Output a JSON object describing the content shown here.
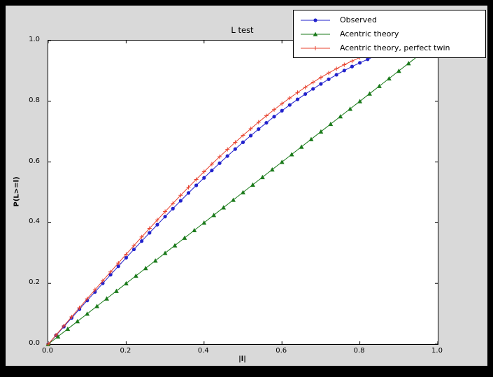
{
  "colors": {
    "figure_background": "#d9d9d9",
    "axes_background": "#ffffff",
    "frame": "#000000"
  },
  "chart_data": {
    "type": "line",
    "title": "L test",
    "xlabel": "|l|",
    "ylabel": "P(L>=l)",
    "xlim": [
      0,
      1
    ],
    "ylim": [
      0,
      1
    ],
    "grid": false,
    "legend_position": "upper right",
    "xtick_labels": [
      "0.0",
      "0.2",
      "0.4",
      "0.6",
      "0.8",
      "1.0"
    ],
    "ytick_labels": [
      "0.0",
      "0.2",
      "0.4",
      "0.6",
      "0.8",
      "1.0"
    ],
    "xticks": [
      0,
      0.2,
      0.4,
      0.6,
      0.8,
      1.0
    ],
    "yticks": [
      0,
      0.2,
      0.4,
      0.6,
      0.8,
      1.0
    ],
    "series": [
      {
        "name": "Observed",
        "color": "#2222cc",
        "marker": "circle",
        "x": [
          0,
          0.02,
          0.04,
          0.06,
          0.08,
          0.1,
          0.12,
          0.14,
          0.16,
          0.18,
          0.2,
          0.22,
          0.24,
          0.26,
          0.28,
          0.3,
          0.32,
          0.34,
          0.36,
          0.38,
          0.4,
          0.42,
          0.44,
          0.46,
          0.48,
          0.5,
          0.52,
          0.54,
          0.56,
          0.58,
          0.6,
          0.62,
          0.64,
          0.66,
          0.68,
          0.7,
          0.72,
          0.74,
          0.76,
          0.78,
          0.8,
          0.82,
          0.84,
          0.86
        ],
        "y": [
          0,
          0.0288,
          0.0576,
          0.0863,
          0.115,
          0.1436,
          0.172,
          0.2004,
          0.2286,
          0.2566,
          0.2845,
          0.3121,
          0.3395,
          0.3667,
          0.3935,
          0.4201,
          0.4464,
          0.4723,
          0.4979,
          0.5231,
          0.5478,
          0.5722,
          0.5961,
          0.6196,
          0.6425,
          0.665,
          0.6869,
          0.7083,
          0.7291,
          0.7494,
          0.769,
          0.7879,
          0.8063,
          0.8239,
          0.8409,
          0.8571,
          0.8726,
          0.8873,
          0.9013,
          0.9144,
          0.9267,
          0.9382,
          0.9488,
          0.9585
        ]
      },
      {
        "name": "Acentric theory",
        "color": "#1a7a1a",
        "marker": "triangle",
        "x": [
          0,
          0.025,
          0.05,
          0.075,
          0.1,
          0.125,
          0.15,
          0.175,
          0.2,
          0.225,
          0.25,
          0.275,
          0.3,
          0.325,
          0.35,
          0.375,
          0.4,
          0.425,
          0.45,
          0.475,
          0.5,
          0.525,
          0.55,
          0.575,
          0.6,
          0.625,
          0.65,
          0.675,
          0.7,
          0.725,
          0.75,
          0.775,
          0.8,
          0.825,
          0.85,
          0.875,
          0.9,
          0.925,
          0.95,
          0.975
        ],
        "y": [
          0,
          0.025,
          0.05,
          0.075,
          0.1,
          0.125,
          0.15,
          0.175,
          0.2,
          0.225,
          0.25,
          0.275,
          0.3,
          0.325,
          0.35,
          0.375,
          0.4,
          0.425,
          0.45,
          0.475,
          0.5,
          0.525,
          0.55,
          0.575,
          0.6,
          0.625,
          0.65,
          0.675,
          0.7,
          0.725,
          0.75,
          0.775,
          0.8,
          0.825,
          0.85,
          0.875,
          0.9,
          0.925,
          0.95,
          0.975
        ]
      },
      {
        "name": "Acentric theory, perfect twin",
        "color": "#e8402c",
        "marker": "plus",
        "x": [
          0,
          0.02,
          0.04,
          0.06,
          0.08,
          0.1,
          0.12,
          0.14,
          0.16,
          0.18,
          0.2,
          0.22,
          0.24,
          0.26,
          0.28,
          0.3,
          0.32,
          0.34,
          0.36,
          0.38,
          0.4,
          0.42,
          0.44,
          0.46,
          0.48,
          0.5,
          0.52,
          0.54,
          0.56,
          0.58,
          0.6,
          0.62,
          0.64,
          0.66,
          0.68,
          0.7,
          0.72,
          0.74,
          0.76,
          0.78,
          0.8,
          0.82,
          0.84,
          0.86
        ],
        "y": [
          0,
          0.03,
          0.06,
          0.0899,
          0.1197,
          0.1495,
          0.1791,
          0.2086,
          0.238,
          0.2671,
          0.296,
          0.3247,
          0.3531,
          0.3812,
          0.409,
          0.4365,
          0.4636,
          0.4903,
          0.5167,
          0.5426,
          0.568,
          0.593,
          0.6174,
          0.6413,
          0.6647,
          0.6875,
          0.7097,
          0.7313,
          0.7522,
          0.7724,
          0.792,
          0.8108,
          0.8289,
          0.8463,
          0.8628,
          0.8785,
          0.8934,
          0.9074,
          0.9205,
          0.9327,
          0.944,
          0.9543,
          0.9636,
          0.972
        ]
      }
    ]
  }
}
